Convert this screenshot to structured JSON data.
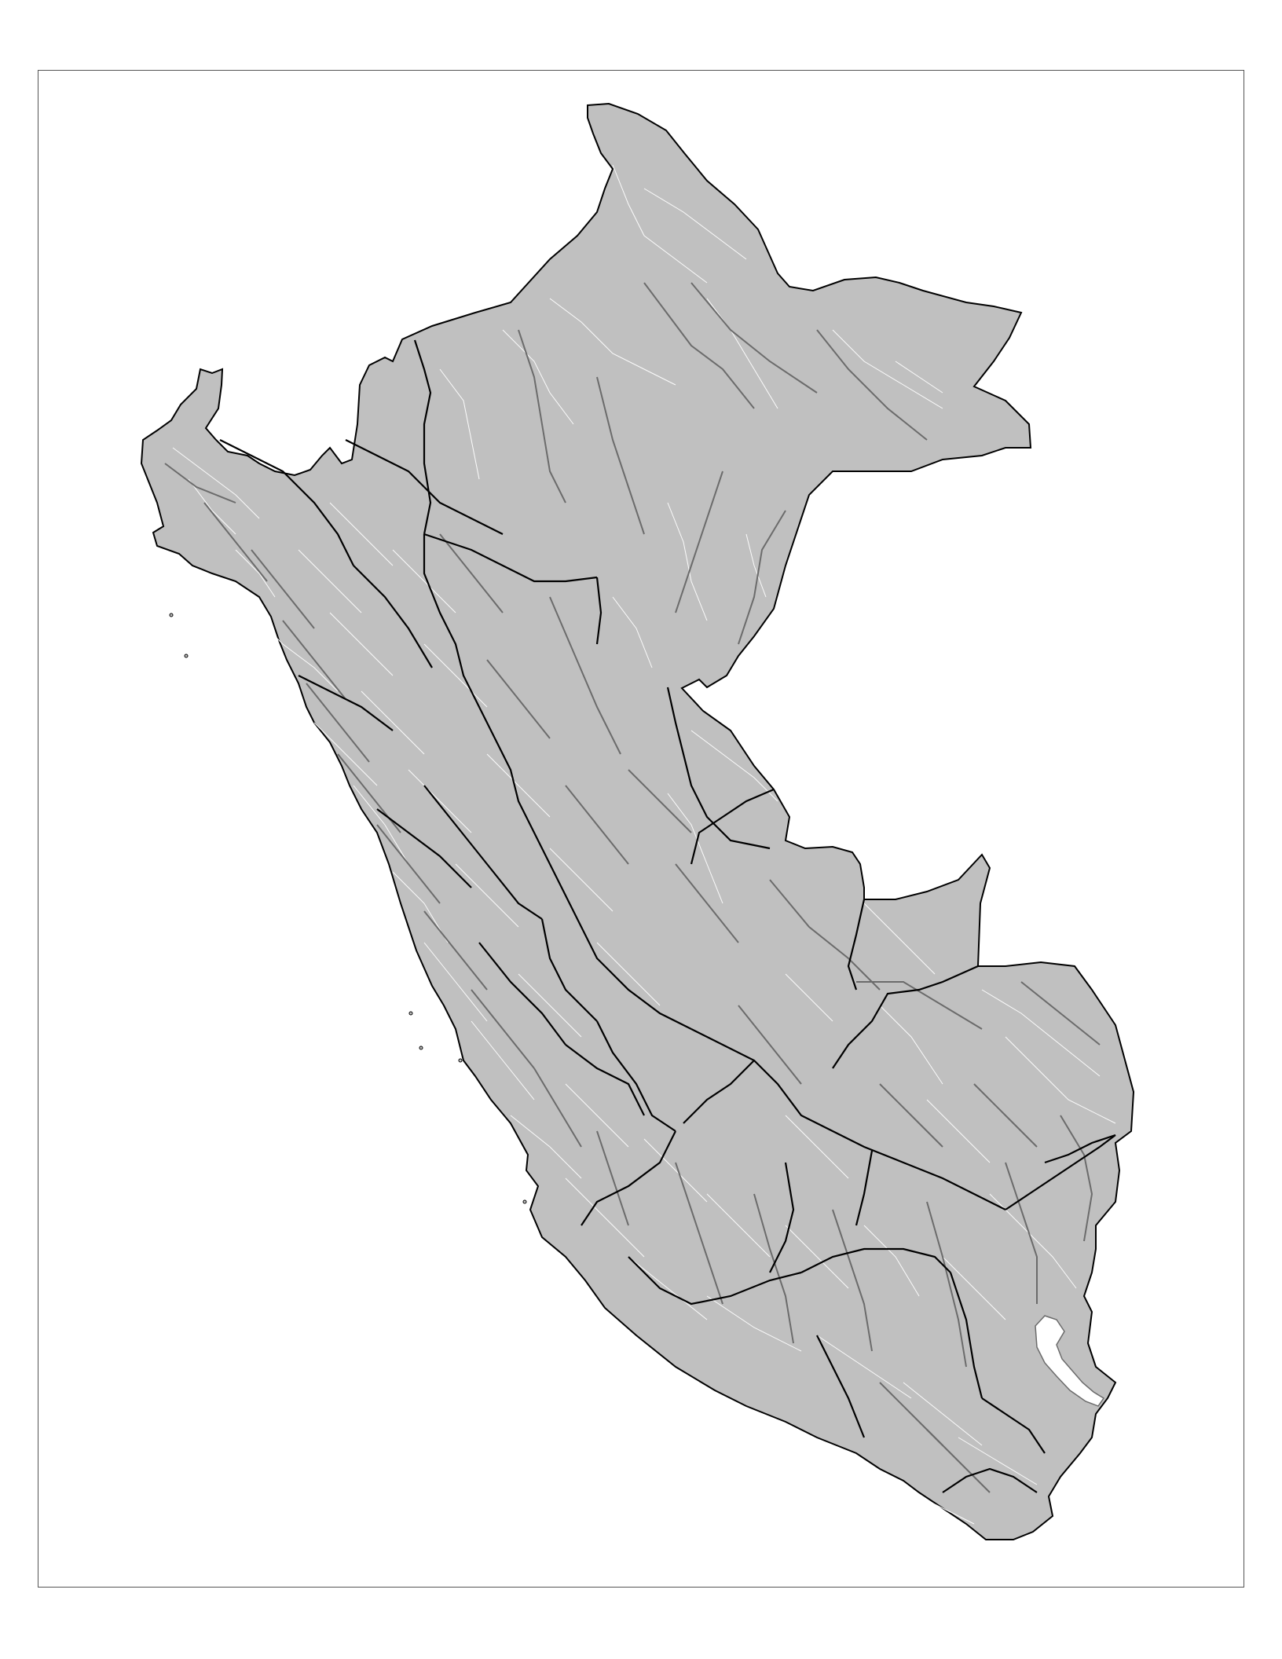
{
  "map": {
    "country": "",
    "colors": {
      "land_fill": "#c0c0c0",
      "department_border": "#000000",
      "province_border": "#6b6b6b",
      "district_border": "#ffffff",
      "lake_fill": "#ffffff",
      "frame_border": "#555555"
    },
    "layers": [
      "departments",
      "provinces",
      "districts",
      "lake"
    ],
    "legend": null,
    "title": ""
  }
}
